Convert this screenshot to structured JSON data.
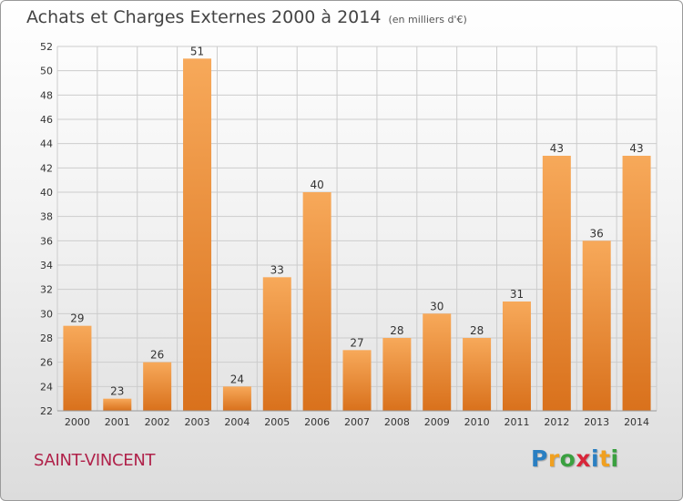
{
  "header": {
    "title": "Achats et Charges Externes 2000 à 2014",
    "subtitle": "(en milliers d'€)"
  },
  "footer": {
    "city": "SAINT-VINCENT",
    "logo_text": "Proxiti",
    "logo_letters": [
      {
        "ch": "P",
        "color": "#2a7fc2"
      },
      {
        "ch": "r",
        "color": "#f0a020"
      },
      {
        "ch": "o",
        "color": "#3aa040"
      },
      {
        "ch": "x",
        "color": "#d8263a"
      },
      {
        "ch": "i",
        "color": "#2a7fc2"
      },
      {
        "ch": "t",
        "color": "#f0a020"
      },
      {
        "ch": "i",
        "color": "#3aa040"
      }
    ]
  },
  "colors": {
    "bar_light": "#f7a95a",
    "bar_dark": "#d9711c",
    "grid": "#cccccc",
    "axis_text": "#333333"
  },
  "chart_data": {
    "type": "bar",
    "title": "Achats et Charges Externes 2000 à 2014",
    "subtitle": "(en milliers d'€)",
    "categories": [
      "2000",
      "2001",
      "2002",
      "2003",
      "2004",
      "2005",
      "2006",
      "2007",
      "2008",
      "2009",
      "2010",
      "2011",
      "2012",
      "2013",
      "2014"
    ],
    "values": [
      29,
      23,
      26,
      51,
      24,
      33,
      40,
      27,
      28,
      30,
      28,
      31,
      43,
      36,
      43
    ],
    "ylim": [
      22,
      52
    ],
    "yticks": [
      22,
      24,
      26,
      28,
      30,
      32,
      34,
      36,
      38,
      40,
      42,
      44,
      46,
      48,
      50,
      52
    ],
    "grid": true,
    "data_labels": true
  }
}
